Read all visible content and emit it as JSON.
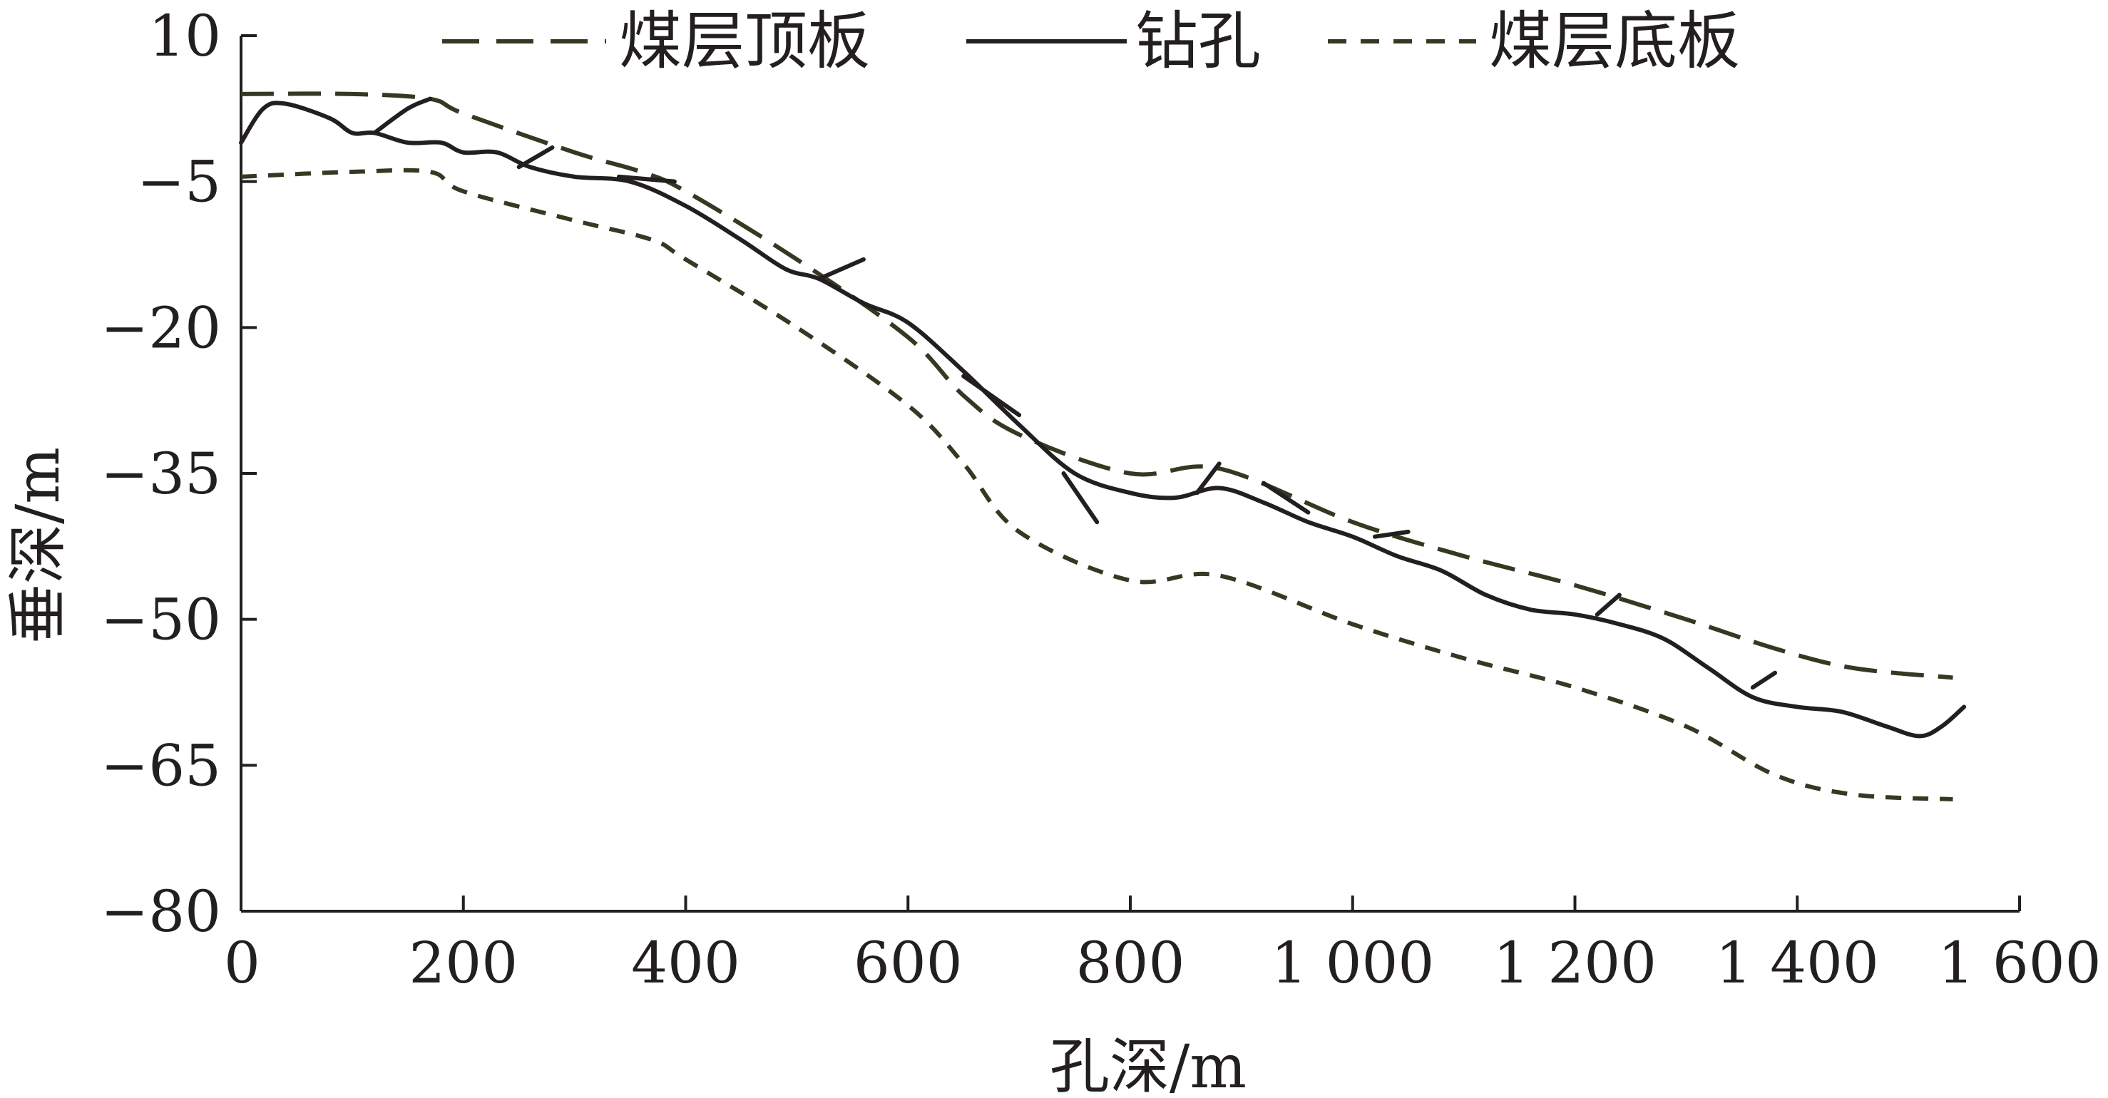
{
  "chart_data": {
    "type": "line",
    "xlabel": "孔深/m",
    "ylabel": "垂深/m",
    "xlim": [
      0,
      1600
    ],
    "ylim": [
      -80,
      10
    ],
    "xticks": [
      0,
      200,
      400,
      600,
      800,
      1000,
      1200,
      1400,
      1600
    ],
    "xtick_labels": [
      "0",
      "200",
      "400",
      "600",
      "800",
      "1 000",
      "1 200",
      "1 400",
      "1 600"
    ],
    "yticks": [
      10,
      -5,
      -20,
      -35,
      -50,
      -65,
      -80
    ],
    "ytick_labels": [
      "10",
      "−5",
      "−20",
      "−35",
      "−50",
      "−65",
      "−80"
    ],
    "grid": false,
    "legend_position": "top",
    "series": [
      {
        "name": "煤层顶板",
        "style": "long-dash",
        "color": "#343a22",
        "x": [
          0,
          100,
          170,
          200,
          300,
          360,
          400,
          500,
          600,
          650,
          700,
          800,
          880,
          1000,
          1100,
          1200,
          1300,
          1380,
          1450,
          1540
        ],
        "y": [
          4,
          4,
          3.5,
          2,
          -2,
          -4,
          -6,
          -13,
          -21,
          -27,
          -31,
          -35,
          -34.5,
          -40,
          -43.5,
          -46.5,
          -50,
          -53,
          -55,
          -56
        ]
      },
      {
        "name": "钻孔",
        "style": "solid",
        "color": "#231f20",
        "x": [
          0,
          20,
          40,
          80,
          100,
          120,
          150,
          180,
          200,
          230,
          260,
          300,
          350,
          400,
          450,
          490,
          520,
          560,
          600,
          650,
          700,
          750,
          800,
          840,
          880,
          920,
          960,
          1000,
          1040,
          1080,
          1120,
          1160,
          1200,
          1240,
          1280,
          1320,
          1360,
          1400,
          1440,
          1480,
          1510,
          1530,
          1550
        ],
        "y": [
          -1,
          2.5,
          3,
          1.5,
          0,
          0,
          -1,
          -1,
          -2,
          -2,
          -3.5,
          -4.5,
          -5,
          -7.5,
          -11,
          -14,
          -15,
          -17.5,
          -19.5,
          -24.5,
          -30,
          -35,
          -37,
          -37.5,
          -36.5,
          -38,
          -40,
          -41.5,
          -43.5,
          -45,
          -47.5,
          -49,
          -49.5,
          -50.5,
          -52,
          -55,
          -58,
          -59,
          -59.5,
          -61,
          -62,
          -61,
          -59
        ]
      },
      {
        "name": "煤层底板",
        "style": "short-dash",
        "color": "#343a22",
        "x": [
          0,
          100,
          170,
          200,
          300,
          370,
          400,
          500,
          600,
          650,
          700,
          800,
          880,
          1000,
          1100,
          1200,
          1300,
          1380,
          1450,
          1540
        ],
        "y": [
          -4.5,
          -4,
          -4,
          -6,
          -9,
          -11,
          -13,
          -20,
          -28,
          -34,
          -41,
          -46,
          -45.5,
          -50.5,
          -54,
          -57,
          -61,
          -66,
          -68,
          -68.5
        ]
      }
    ],
    "branches": [
      {
        "x": [
          120,
          150,
          170
        ],
        "y": [
          0,
          2.5,
          3.5
        ]
      },
      {
        "x": [
          250,
          280
        ],
        "y": [
          -3.5,
          -1.5
        ]
      },
      {
        "x": [
          340,
          390
        ],
        "y": [
          -4.5,
          -5
        ]
      },
      {
        "x": [
          520,
          560
        ],
        "y": [
          -15,
          -13
        ]
      },
      {
        "x": [
          650,
          700
        ],
        "y": [
          -25,
          -29
        ]
      },
      {
        "x": [
          740,
          770
        ],
        "y": [
          -35,
          -40
        ]
      },
      {
        "x": [
          860,
          880
        ],
        "y": [
          -37,
          -34
        ]
      },
      {
        "x": [
          920,
          960
        ],
        "y": [
          -36,
          -39
        ]
      },
      {
        "x": [
          1020,
          1050
        ],
        "y": [
          -41.5,
          -41
        ]
      },
      {
        "x": [
          1220,
          1240
        ],
        "y": [
          -49.5,
          -47.5
        ]
      },
      {
        "x": [
          1360,
          1380
        ],
        "y": [
          -57,
          -55.5
        ]
      }
    ]
  }
}
